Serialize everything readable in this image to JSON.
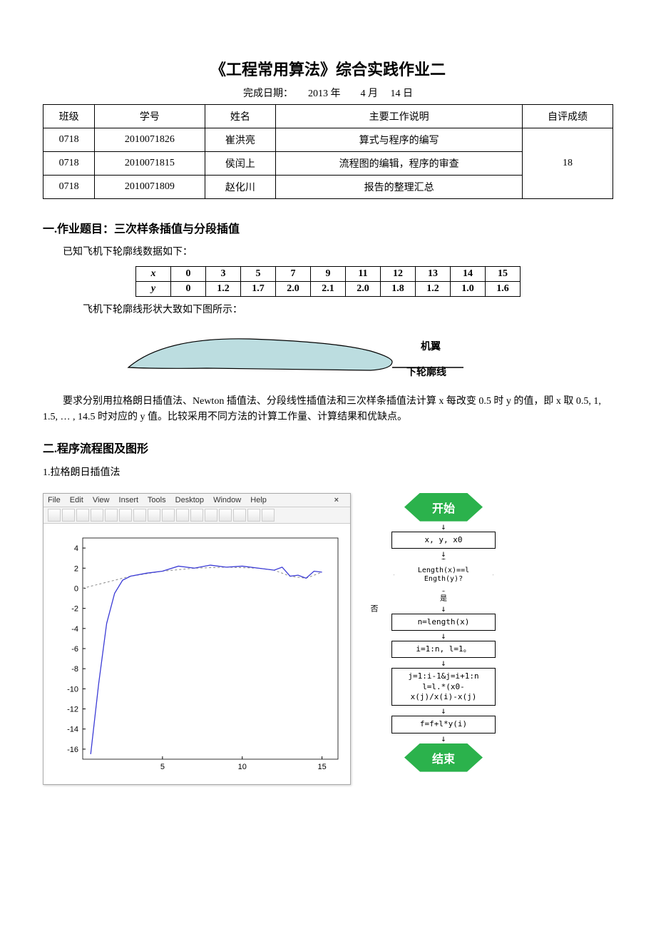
{
  "title": "《工程常用算法》综合实践作业二",
  "date_line": "完成日期：　　2013 年　　4 月　 14 日",
  "info_table": {
    "headers": [
      "班级",
      "学号",
      "姓名",
      "主要工作说明",
      "自评成绩"
    ],
    "rows": [
      [
        "0718",
        "2010071826",
        "崔洪亮",
        "算式与程序的编写"
      ],
      [
        "0718",
        "2010071815",
        "侯闰上",
        "流程图的编辑，程序的审查"
      ],
      [
        "0718",
        "2010071809",
        "赵化川",
        "报告的整理汇总"
      ]
    ],
    "score_merged": "18"
  },
  "section1_title": "一.作业题目：三次样条插值与分段插值",
  "known_text": "已知飞机下轮廓线数据如下：",
  "xy_table": {
    "x_label": "x",
    "y_label": "y",
    "x": [
      "0",
      "3",
      "5",
      "7",
      "9",
      "11",
      "12",
      "13",
      "14",
      "15"
    ],
    "y": [
      "0",
      "1.2",
      "1.7",
      "2.0",
      "2.1",
      "2.0",
      "1.8",
      "1.2",
      "1.0",
      "1.6"
    ]
  },
  "shape_text": "飞机下轮廓线形状大致如下图所示：",
  "wing_label": "机翼",
  "contour_label": "下轮廓线",
  "wing_colors": {
    "fill": "#bcdde0",
    "stroke": "#000"
  },
  "requirement": "要求分别用拉格朗日插值法、Newton 插值法、分段线性插值法和三次样条插值法计算 x 每改变 0.5 时 y 的值，即 x 取 0.5, 1, 1.5, … , 14.5 时对应的 y 值。比较采用不同方法的计算工作量、计算结果和优缺点。",
  "section2_title": "二.程序流程图及图形",
  "method1": "1.拉格朗日插值法",
  "matlab": {
    "menu": [
      "File",
      "Edit",
      "View",
      "Insert",
      "Tools",
      "Desktop",
      "Window",
      "Help"
    ],
    "chart": {
      "xlim": [
        0,
        16
      ],
      "ylim": [
        -17,
        5
      ],
      "xticks": [
        5,
        10,
        15
      ],
      "yticks": [
        -16,
        -14,
        -12,
        -10,
        -8,
        -6,
        -4,
        -2,
        0,
        2,
        4
      ],
      "grid_color": "#d8d8d8",
      "line_color": "#3b3bd6",
      "dash_color": "#888",
      "dash_series": [
        [
          0,
          0
        ],
        [
          3,
          1.2
        ],
        [
          5,
          1.7
        ],
        [
          7,
          2.0
        ],
        [
          9,
          2.1
        ],
        [
          11,
          2.0
        ],
        [
          12,
          1.8
        ],
        [
          13,
          1.2
        ],
        [
          14,
          1.0
        ],
        [
          15,
          1.6
        ]
      ],
      "line_series": [
        [
          0.5,
          -16.5
        ],
        [
          1,
          -9.5
        ],
        [
          1.5,
          -3.5
        ],
        [
          2,
          -0.5
        ],
        [
          2.5,
          0.8
        ],
        [
          3,
          1.2
        ],
        [
          4,
          1.5
        ],
        [
          5,
          1.7
        ],
        [
          6,
          2.2
        ],
        [
          7,
          2.0
        ],
        [
          8,
          2.3
        ],
        [
          9,
          2.1
        ],
        [
          10,
          2.2
        ],
        [
          11,
          2.0
        ],
        [
          12,
          1.8
        ],
        [
          12.5,
          2.1
        ],
        [
          13,
          1.2
        ],
        [
          13.5,
          1.3
        ],
        [
          14,
          1.0
        ],
        [
          14.5,
          1.7
        ],
        [
          15,
          1.6
        ]
      ]
    }
  },
  "flowchart": {
    "start": "开始",
    "input": "x, y, x0",
    "cond": "Length(x)==l\nEngth(y)?",
    "yes": "是",
    "no": "否",
    "b1": "n=length(x)",
    "b2": "i=1:n, l=1。",
    "b3": "j=1:i-1&j=i+1:n\nl=l.*(x0-\nx(j)/x(i)-x(j)",
    "b4": "f=f+l*y(i)",
    "end": "结束",
    "hex_color": "#2bb24c"
  }
}
